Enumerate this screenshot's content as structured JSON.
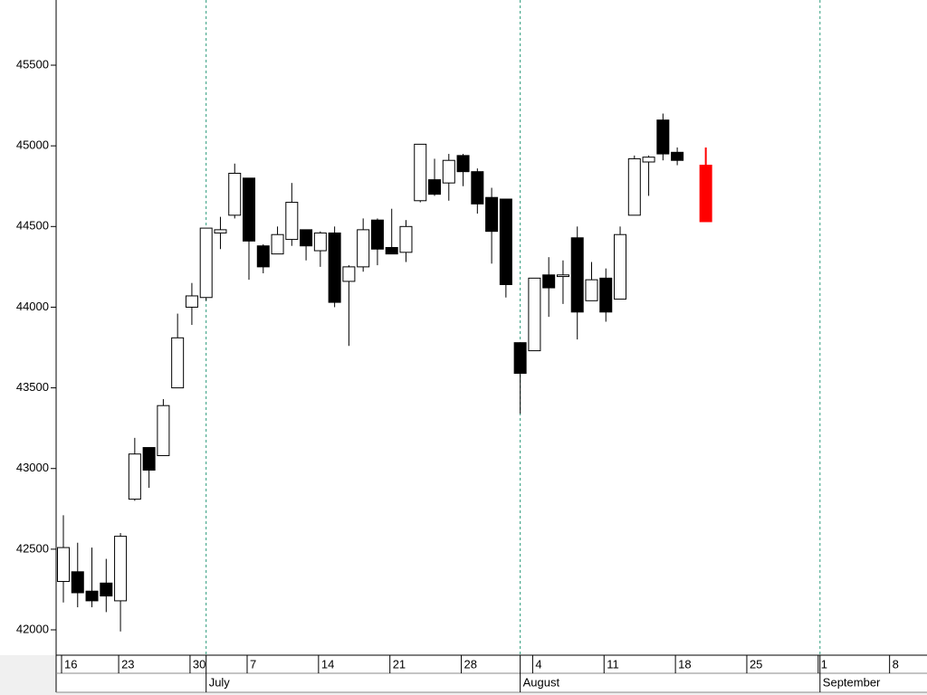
{
  "chart_data": {
    "type": "candlestick",
    "x": [
      "06-16",
      "06-17",
      "06-18",
      "06-20",
      "06-23",
      "06-24",
      "06-25",
      "06-26",
      "06-27",
      "06-30",
      "07-01",
      "07-02",
      "07-03",
      "07-07",
      "07-08",
      "07-09",
      "07-10",
      "07-11",
      "07-14",
      "07-15",
      "07-16",
      "07-17",
      "07-18",
      "07-21",
      "07-22",
      "07-23",
      "07-24",
      "07-25",
      "07-28",
      "07-29",
      "07-30",
      "07-31",
      "08-01",
      "08-04",
      "08-05",
      "08-06",
      "08-07",
      "08-08",
      "08-11",
      "08-12",
      "08-13",
      "08-14",
      "08-15",
      "08-18",
      "08-19",
      "08-20"
    ],
    "open": [
      42300,
      42360,
      42240,
      42290,
      42180,
      42810,
      43130,
      43080,
      43500,
      44000,
      44060,
      44460,
      44570,
      44800,
      44380,
      44330,
      44420,
      44480,
      44350,
      44460,
      44160,
      44250,
      44540,
      44370,
      44340,
      44660,
      44790,
      44770,
      44940,
      44840,
      44680,
      44670,
      43780,
      43730,
      44200,
      44190,
      44430,
      44040,
      44180,
      44050,
      44570,
      44900,
      45160,
      44960,
      null,
      44880
    ],
    "high": [
      42710,
      42540,
      42510,
      42440,
      42600,
      43190,
      43130,
      43430,
      43960,
      44150,
      44490,
      44560,
      44890,
      44800,
      44390,
      44500,
      44770,
      44480,
      44470,
      44500,
      44260,
      44550,
      44550,
      44610,
      44540,
      45010,
      44920,
      44950,
      44950,
      44860,
      44740,
      44670,
      43780,
      44180,
      44310,
      44290,
      44500,
      44280,
      44240,
      44500,
      44940,
      44940,
      45200,
      44990,
      null,
      44990
    ],
    "low": [
      42170,
      42140,
      42140,
      42110,
      41990,
      42800,
      42880,
      43080,
      43500,
      43890,
      44040,
      44360,
      44550,
      44170,
      44210,
      44330,
      44380,
      44290,
      44250,
      44000,
      43760,
      44220,
      44260,
      44330,
      44280,
      44650,
      44690,
      44660,
      44750,
      44580,
      44270,
      44060,
      43340,
      43730,
      43940,
      44020,
      43800,
      44040,
      43910,
      44050,
      44570,
      44690,
      44910,
      44880,
      null,
      44530
    ],
    "close": [
      42510,
      42230,
      42180,
      42210,
      42580,
      43090,
      42990,
      43390,
      43810,
      44070,
      44490,
      44480,
      44830,
      44410,
      44250,
      44450,
      44650,
      44380,
      44460,
      44030,
      44250,
      44480,
      44360,
      44330,
      44500,
      45010,
      44700,
      44910,
      44840,
      44640,
      44470,
      44140,
      43590,
      44180,
      44120,
      44200,
      43970,
      44170,
      43970,
      44450,
      44920,
      44930,
      44950,
      44910,
      null,
      44530
    ],
    "up_color": "#ffffff",
    "down_color": "#000000",
    "last_color": "#ff0000",
    "ylim": [
      41843,
      45904
    ],
    "yticks": [
      42000,
      42500,
      43000,
      43500,
      44000,
      44500,
      45000,
      45500
    ],
    "xticks": [
      {
        "value": "06-16",
        "label": "16"
      },
      {
        "value": "06-23",
        "label": "23"
      },
      {
        "value": "06-30",
        "label": "30"
      },
      {
        "value": "07-07",
        "label": "7"
      },
      {
        "value": "07-14",
        "label": "14"
      },
      {
        "value": "07-21",
        "label": "21"
      },
      {
        "value": "07-28",
        "label": "28"
      },
      {
        "value": "08-04",
        "label": "4"
      },
      {
        "value": "08-11",
        "label": "11"
      },
      {
        "value": "08-18",
        "label": "18"
      },
      {
        "value": "08-25",
        "label": "25"
      },
      {
        "value": "09-01",
        "label": "1"
      },
      {
        "value": "09-08",
        "label": "8"
      }
    ],
    "month_ticks": [
      {
        "value": "07-01",
        "label": "July"
      },
      {
        "value": "08-01",
        "label": "August"
      },
      {
        "value": "09-01",
        "label": "September"
      }
    ]
  }
}
